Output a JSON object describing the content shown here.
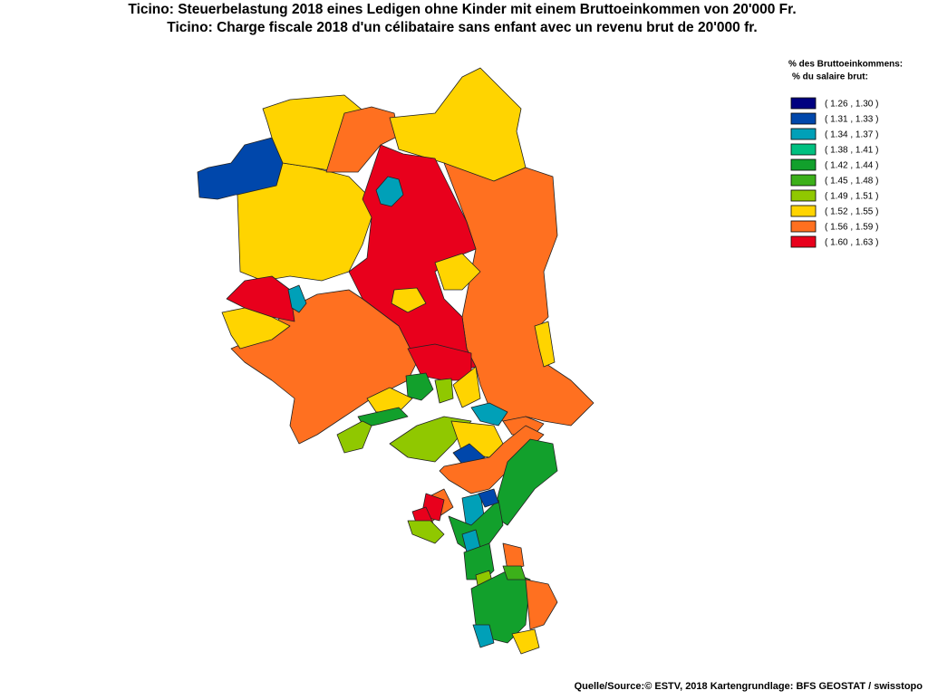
{
  "header": {
    "title": "Ticino: Steuerbelastung 2018 eines Ledigen ohne Kinder mit einem Bruttoeinkommen von 20'000 Fr.",
    "subtitle": "Ticino: Charge fiscale 2018 d'un célibataire sans enfant avec un revenu brut de 20'000 fr."
  },
  "legend": {
    "title": "% des Bruttoeinkommens:",
    "subtitle": "% du salaire brut:",
    "items": [
      {
        "label": "( 1.26 , 1.30 )",
        "color": "#000080"
      },
      {
        "label": "( 1.31 , 1.33 )",
        "color": "#0047ab"
      },
      {
        "label": "( 1.34 , 1.37 )",
        "color": "#00a0b8"
      },
      {
        "label": "( 1.38 , 1.41 )",
        "color": "#00c080"
      },
      {
        "label": "( 1.42 , 1.44 )",
        "color": "#12a02c"
      },
      {
        "label": "( 1.45 , 1.48 )",
        "color": "#3cb01a"
      },
      {
        "label": "( 1.49 , 1.51 )",
        "color": "#90c800"
      },
      {
        "label": "( 1.52 , 1.55 )",
        "color": "#ffd400"
      },
      {
        "label": "( 1.56 , 1.59 )",
        "color": "#ff7020"
      },
      {
        "label": "( 1.60 , 1.63 )",
        "color": "#e8001c"
      }
    ]
  },
  "footer": {
    "source": "Quelle/Source:© ESTV, 2018 Kartengrundlage: BFS GEOSTAT / swisstopo"
  }
}
